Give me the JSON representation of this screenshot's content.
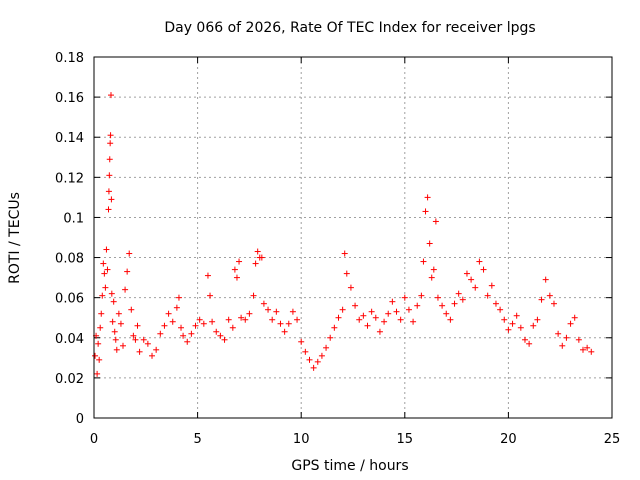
{
  "chart_data": {
    "type": "scatter",
    "title": "Day 066 of 2026, Rate Of TEC Index for receiver lpgs",
    "xlabel": "GPS time / hours",
    "ylabel": "ROTI / TECUs",
    "xlim": [
      0,
      25
    ],
    "ylim": [
      0,
      0.18
    ],
    "x_ticks": [
      0,
      5,
      10,
      15,
      20,
      25
    ],
    "x_tick_labels": [
      "0",
      "5",
      "10",
      "15",
      "20",
      "25"
    ],
    "y_ticks": [
      0,
      0.02,
      0.04,
      0.06,
      0.08,
      0.1,
      0.12,
      0.14,
      0.16,
      0.18
    ],
    "y_tick_labels": [
      "0",
      "0.02",
      "0.04",
      "0.06",
      "0.08",
      "0.1",
      "0.12",
      "0.14",
      "0.16",
      "0.18"
    ],
    "grid": true,
    "marker": "plus",
    "color": "#ff0000",
    "series": [
      {
        "name": "ROTI",
        "x": [
          0.05,
          0.1,
          0.15,
          0.2,
          0.25,
          0.3,
          0.35,
          0.4,
          0.45,
          0.5,
          0.55,
          0.6,
          0.65,
          0.7,
          0.72,
          0.74,
          0.76,
          0.78,
          0.8,
          0.82,
          0.84,
          0.86,
          0.9,
          0.95,
          1.0,
          1.05,
          1.1,
          1.2,
          1.3,
          1.4,
          1.5,
          1.6,
          1.7,
          1.8,
          1.9,
          2.0,
          2.1,
          2.2,
          2.4,
          2.6,
          2.8,
          3.0,
          3.2,
          3.4,
          3.6,
          3.8,
          4.0,
          4.1,
          4.2,
          4.3,
          4.5,
          4.7,
          4.9,
          5.1,
          5.3,
          5.5,
          5.6,
          5.7,
          5.9,
          6.1,
          6.3,
          6.5,
          6.7,
          6.8,
          6.9,
          7.0,
          7.1,
          7.3,
          7.5,
          7.7,
          7.8,
          7.9,
          8.0,
          8.1,
          8.2,
          8.4,
          8.6,
          8.8,
          9.0,
          9.2,
          9.4,
          9.6,
          9.8,
          10.0,
          10.2,
          10.4,
          10.6,
          10.8,
          11.0,
          11.2,
          11.4,
          11.6,
          11.8,
          12.0,
          12.1,
          12.2,
          12.4,
          12.6,
          12.8,
          13.0,
          13.2,
          13.4,
          13.6,
          13.8,
          14.0,
          14.2,
          14.4,
          14.6,
          14.8,
          15.0,
          15.2,
          15.4,
          15.6,
          15.8,
          15.9,
          16.0,
          16.1,
          16.2,
          16.3,
          16.4,
          16.5,
          16.6,
          16.8,
          17.0,
          17.2,
          17.4,
          17.6,
          17.8,
          18.0,
          18.2,
          18.4,
          18.6,
          18.8,
          19.0,
          19.2,
          19.4,
          19.6,
          19.8,
          20.0,
          20.2,
          20.4,
          20.6,
          20.8,
          21.0,
          21.2,
          21.4,
          21.6,
          21.8,
          22.0,
          22.2,
          22.4,
          22.6,
          22.8,
          23.0,
          23.2,
          23.4,
          23.6,
          23.8,
          24.0
        ],
        "y": [
          0.031,
          0.041,
          0.022,
          0.037,
          0.029,
          0.045,
          0.052,
          0.061,
          0.077,
          0.072,
          0.065,
          0.084,
          0.074,
          0.104,
          0.113,
          0.121,
          0.129,
          0.137,
          0.141,
          0.161,
          0.109,
          0.062,
          0.048,
          0.058,
          0.043,
          0.039,
          0.034,
          0.052,
          0.047,
          0.036,
          0.064,
          0.073,
          0.082,
          0.054,
          0.041,
          0.039,
          0.046,
          0.033,
          0.039,
          0.037,
          0.031,
          0.034,
          0.042,
          0.046,
          0.052,
          0.048,
          0.055,
          0.06,
          0.045,
          0.041,
          0.038,
          0.042,
          0.046,
          0.049,
          0.047,
          0.071,
          0.061,
          0.048,
          0.043,
          0.041,
          0.039,
          0.049,
          0.045,
          0.074,
          0.07,
          0.078,
          0.05,
          0.049,
          0.052,
          0.061,
          0.077,
          0.083,
          0.08,
          0.08,
          0.057,
          0.054,
          0.049,
          0.053,
          0.047,
          0.043,
          0.047,
          0.053,
          0.049,
          0.038,
          0.033,
          0.029,
          0.025,
          0.028,
          0.031,
          0.035,
          0.04,
          0.045,
          0.05,
          0.054,
          0.082,
          0.072,
          0.065,
          0.056,
          0.049,
          0.051,
          0.046,
          0.053,
          0.05,
          0.043,
          0.048,
          0.052,
          0.058,
          0.053,
          0.049,
          0.06,
          0.054,
          0.048,
          0.056,
          0.061,
          0.078,
          0.103,
          0.11,
          0.087,
          0.07,
          0.074,
          0.098,
          0.06,
          0.056,
          0.052,
          0.049,
          0.057,
          0.062,
          0.059,
          0.072,
          0.069,
          0.065,
          0.078,
          0.074,
          0.061,
          0.066,
          0.057,
          0.054,
          0.049,
          0.044,
          0.047,
          0.051,
          0.045,
          0.039,
          0.037,
          0.046,
          0.049,
          0.059,
          0.069,
          0.061,
          0.057,
          0.042,
          0.036,
          0.04,
          0.047,
          0.05,
          0.039,
          0.034,
          0.035,
          0.033
        ]
      }
    ]
  }
}
